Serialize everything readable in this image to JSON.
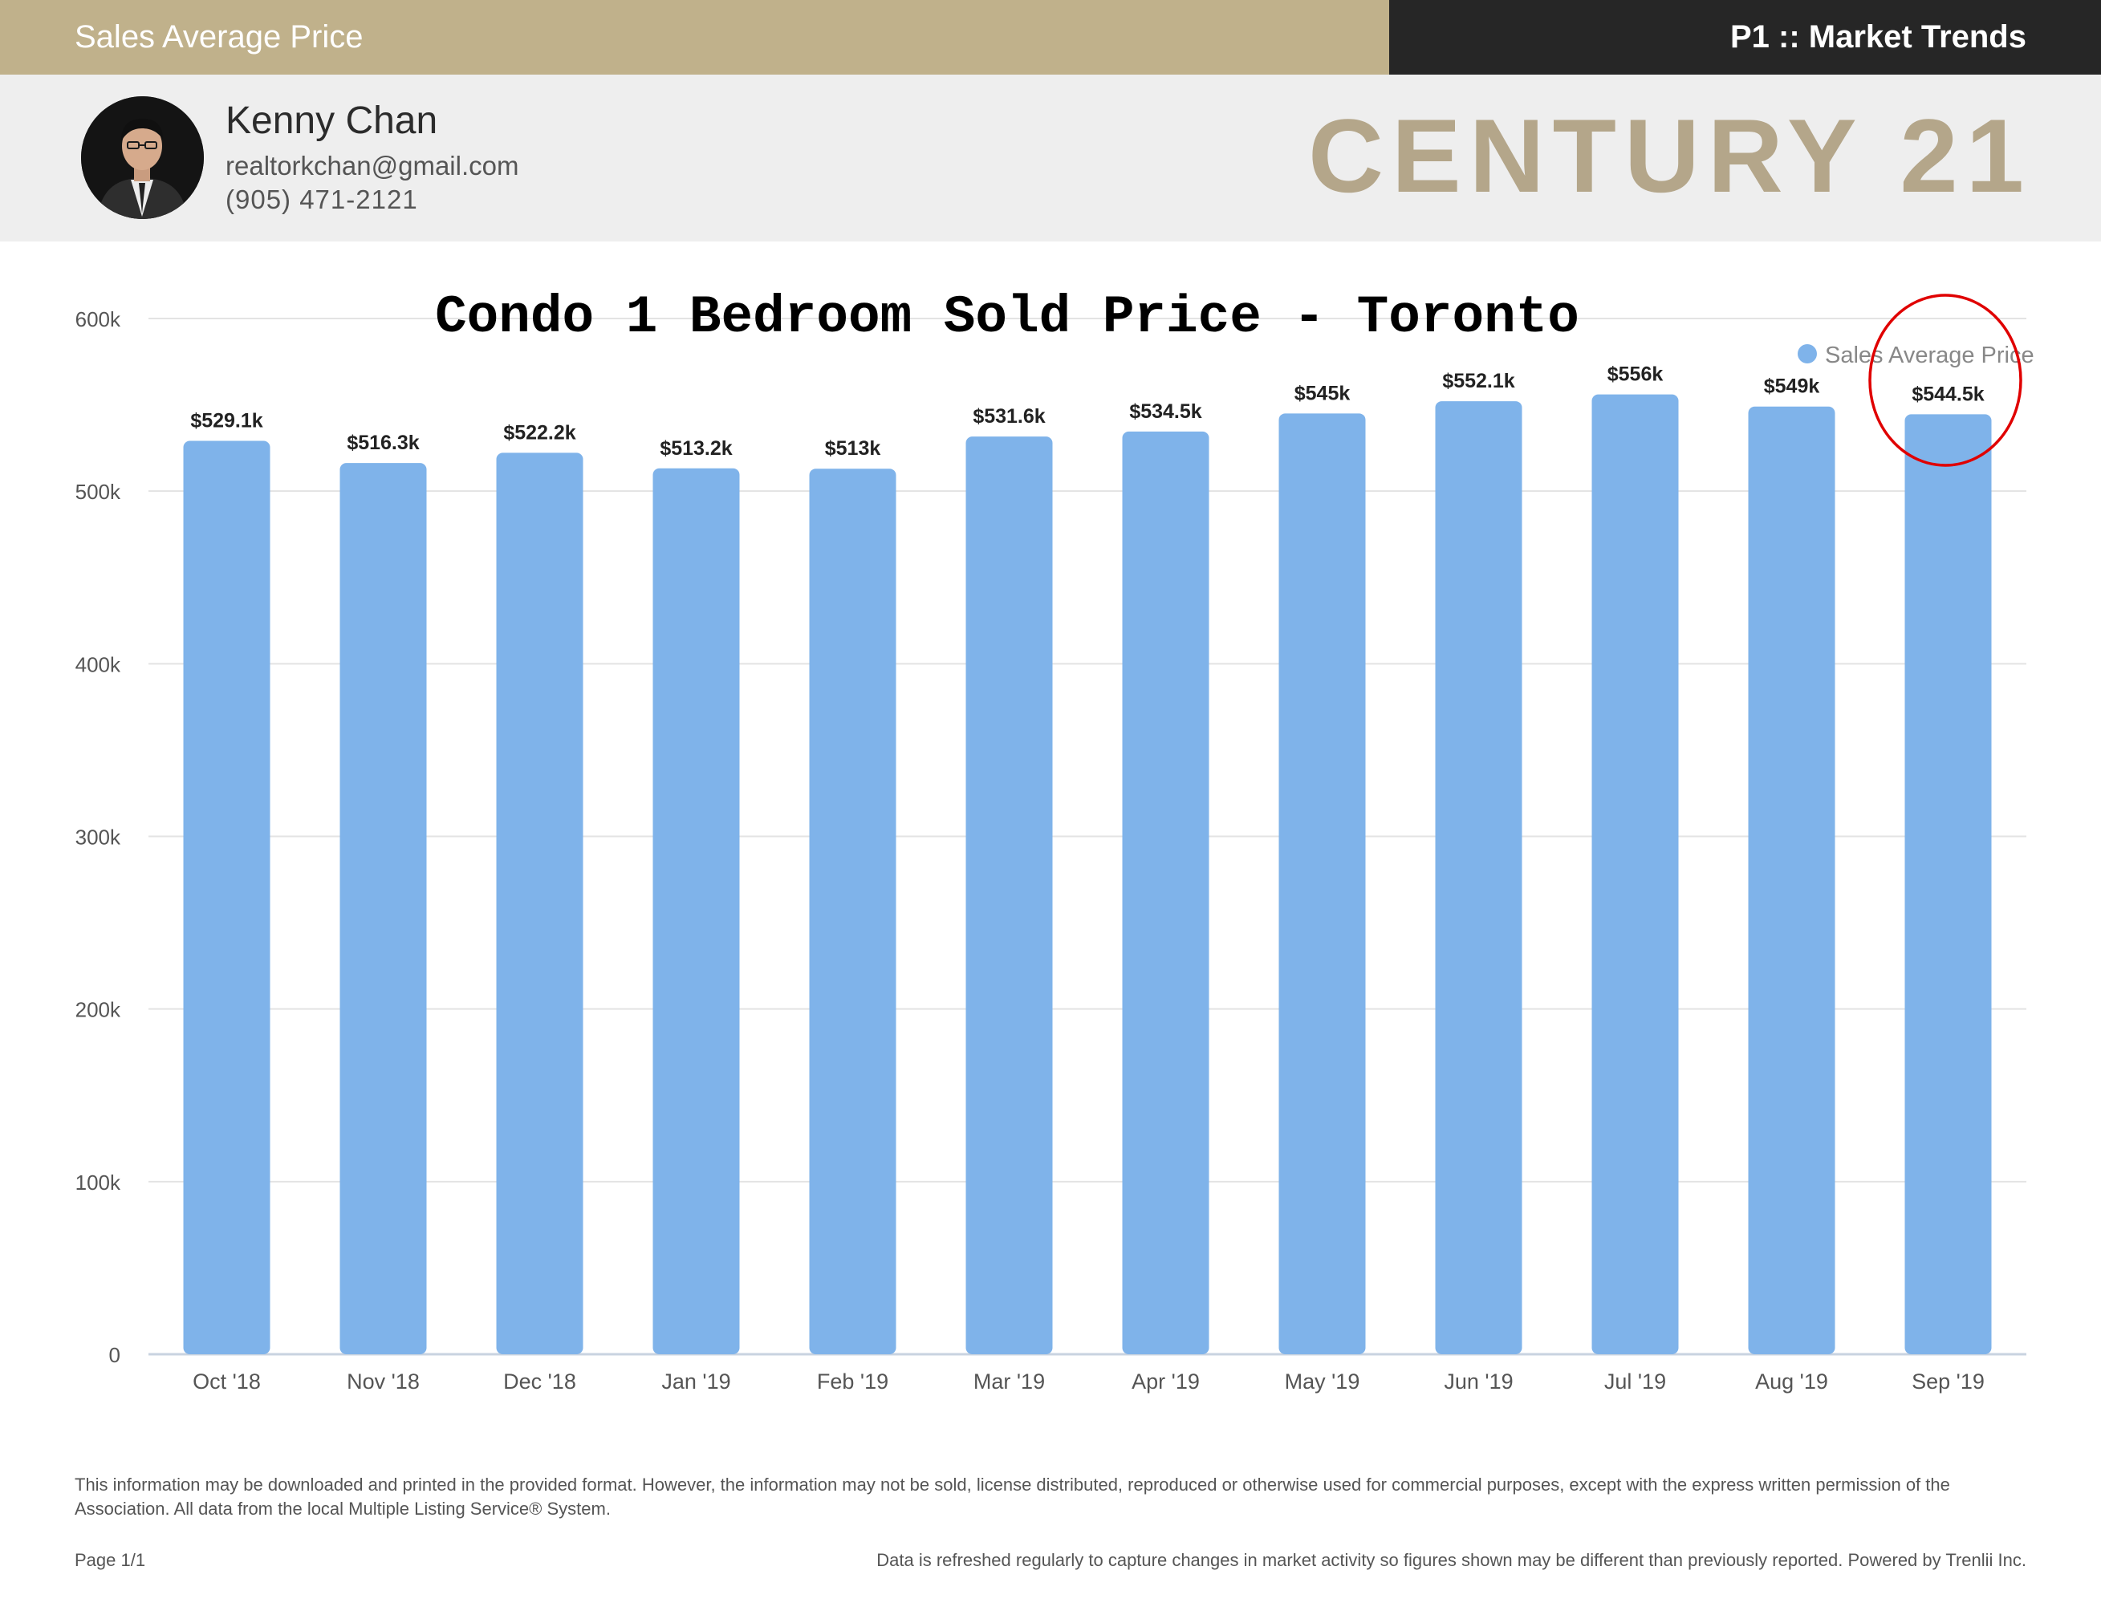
{
  "header": {
    "section_title": "Sales Average Price",
    "page_label": "P1 :: Market Trends"
  },
  "agent": {
    "name": "Kenny Chan",
    "email": "realtorkchan@gmail.com",
    "phone": "(905) 471-2121"
  },
  "brand": {
    "logo_text": "CENTURY 21"
  },
  "colors": {
    "bar": "#7fb3ea",
    "accent_gold": "#c0b18b",
    "dark": "#262626",
    "highlight_circle": "#e00000"
  },
  "chart_data": {
    "type": "bar",
    "title": "Condo 1 Bedroom Sold Price - Toronto",
    "categories": [
      "Oct '18",
      "Nov '18",
      "Dec '18",
      "Jan '19",
      "Feb '19",
      "Mar '19",
      "Apr '19",
      "May '19",
      "Jun '19",
      "Jul '19",
      "Aug '19",
      "Sep '19"
    ],
    "series": [
      {
        "name": "Sales Average Price",
        "values": [
          529100,
          516300,
          522200,
          513200,
          513000,
          531600,
          534500,
          545000,
          552100,
          556000,
          549000,
          544500
        ],
        "labels": [
          "$529.1k",
          "$516.3k",
          "$522.2k",
          "$513.2k",
          "$513k",
          "$531.6k",
          "$534.5k",
          "$545k",
          "$552.1k",
          "$556k",
          "$549k",
          "$544.5k"
        ]
      }
    ],
    "y_ticks": [
      0,
      100000,
      200000,
      300000,
      400000,
      500000,
      600000
    ],
    "y_tick_labels": [
      "0",
      "100k",
      "200k",
      "300k",
      "400k",
      "500k",
      "600k"
    ],
    "ylim": [
      0,
      600000
    ],
    "grid": true,
    "legend": "top-right",
    "highlighted_category": "Sep '19"
  },
  "footer": {
    "disclaimer": "This information may be downloaded and printed in the provided format. However, the information may not be sold, license distributed, reproduced or otherwise used for commercial purposes, except with the express written permission of the Association. All data from the local Multiple Listing Service® System.",
    "page": "Page 1/1",
    "refresh_note": "Data is refreshed regularly to capture changes in market activity so figures shown may be different than previously reported. Powered by Trenlii Inc."
  }
}
